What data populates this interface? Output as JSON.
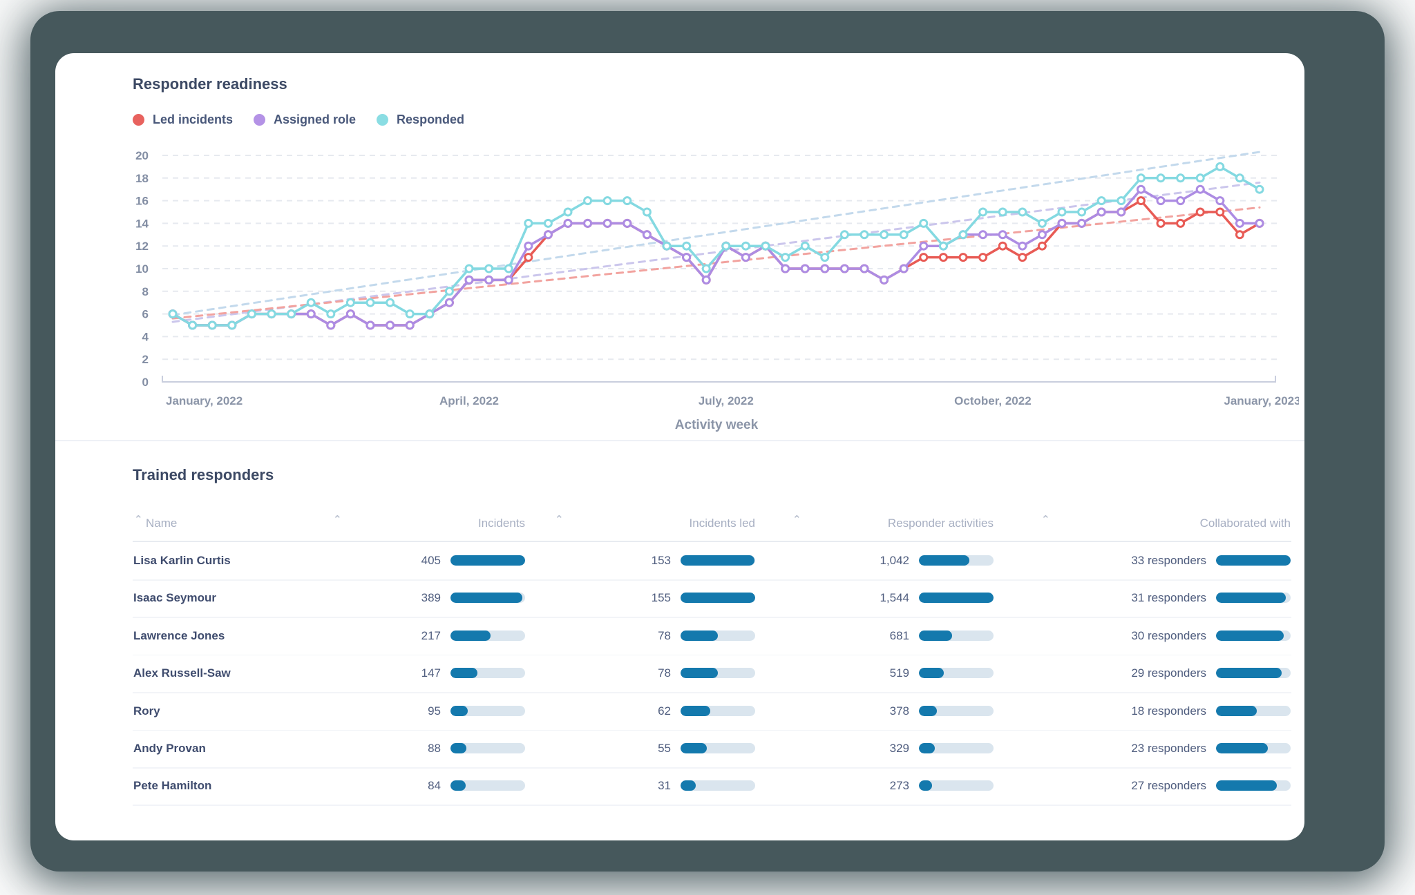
{
  "page": {
    "backdrop_color": "#46585c",
    "card_color": "#ffffff"
  },
  "chart": {
    "title": "Responder readiness",
    "xlabel": "Activity week",
    "legend": [
      {
        "label": "Led incidents",
        "color": "#e8625e"
      },
      {
        "label": "Assigned role",
        "color": "#b492e6"
      },
      {
        "label": "Responded",
        "color": "#8adde3"
      }
    ]
  },
  "chart_data": {
    "type": "line",
    "title": "Responder readiness",
    "xlabel": "Activity week",
    "x_unit": "week (Jan 2022 - Jan 2023, 56 weekly points)",
    "ylim": [
      0,
      20
    ],
    "y_ticks": [
      0,
      2,
      4,
      6,
      8,
      10,
      12,
      14,
      16,
      18,
      20
    ],
    "grid": "dashed horizontal",
    "legend_position": "top-left",
    "x_ticks": [
      {
        "label": "January, 2022",
        "week": 0,
        "anchor": "start"
      },
      {
        "label": "April, 2022",
        "week": 15,
        "anchor": "middle"
      },
      {
        "label": "July, 2022",
        "week": 28,
        "anchor": "middle"
      },
      {
        "label": "October, 2022",
        "week": 41.5,
        "anchor": "middle"
      },
      {
        "label": "January, 2023",
        "week": 55,
        "anchor": "middle"
      }
    ],
    "series": [
      {
        "name": "Led incidents",
        "color": "#e85b55",
        "marker": "open-circle",
        "values": [
          6,
          5,
          5,
          5,
          6,
          6,
          6,
          6,
          5,
          6,
          5,
          5,
          5,
          6,
          7,
          9,
          9,
          9,
          11,
          13,
          14,
          14,
          14,
          14,
          13,
          12,
          11,
          9,
          12,
          11,
          12,
          10,
          10,
          10,
          10,
          10,
          9,
          10,
          11,
          11,
          11,
          11,
          12,
          11,
          12,
          14,
          14,
          15,
          15,
          16,
          14,
          14,
          15,
          15,
          13,
          14
        ]
      },
      {
        "name": "Assigned role",
        "color": "#ad8ce3",
        "marker": "open-circle",
        "values": [
          6,
          5,
          5,
          5,
          6,
          6,
          6,
          6,
          5,
          6,
          5,
          5,
          5,
          6,
          7,
          9,
          9,
          9,
          12,
          13,
          14,
          14,
          14,
          14,
          13,
          12,
          11,
          9,
          12,
          11,
          12,
          10,
          10,
          10,
          10,
          10,
          9,
          10,
          12,
          12,
          13,
          13,
          13,
          12,
          13,
          14,
          14,
          15,
          15,
          17,
          16,
          16,
          17,
          16,
          14,
          14
        ]
      },
      {
        "name": "Responded",
        "color": "#84d9e1",
        "marker": "open-circle",
        "values": [
          6,
          5,
          5,
          5,
          6,
          6,
          6,
          7,
          6,
          7,
          7,
          7,
          6,
          6,
          8,
          10,
          10,
          10,
          14,
          14,
          15,
          16,
          16,
          16,
          15,
          12,
          12,
          10,
          12,
          12,
          12,
          11,
          12,
          11,
          13,
          13,
          13,
          13,
          14,
          12,
          13,
          15,
          15,
          15,
          14,
          15,
          15,
          16,
          16,
          18,
          18,
          18,
          18,
          19,
          18,
          17
        ]
      }
    ],
    "trend_lines": [
      {
        "name": "Responded trend",
        "color": "#c3d9ec",
        "start": 5.9,
        "end": 20.3
      },
      {
        "name": "Assigned role trend",
        "color": "#cbc6ec",
        "start": 5.3,
        "end": 17.6
      },
      {
        "name": "Led incidents trend",
        "color": "#f2a39f",
        "start": 5.6,
        "end": 15.4
      }
    ]
  },
  "table": {
    "title": "Trained responders",
    "bar_fill_color": "#1479ad",
    "bar_track_color": "#dae5ee",
    "columns": [
      {
        "key": "name",
        "label": "Name"
      },
      {
        "key": "incidents",
        "label": "Incidents",
        "max": 405
      },
      {
        "key": "incidents_led",
        "label": "Incidents led",
        "max": 155
      },
      {
        "key": "responder_activities",
        "label": "Responder activities",
        "max": 1544
      },
      {
        "key": "collaborated_with",
        "label": "Collaborated with",
        "max": 33,
        "suffix": " responders"
      }
    ],
    "rows": [
      {
        "name": "Lisa Karlin Curtis",
        "incidents": 405,
        "incidents_led": 153,
        "responder_activities": 1042,
        "collaborated_with": 33
      },
      {
        "name": "Isaac Seymour",
        "incidents": 389,
        "incidents_led": 155,
        "responder_activities": 1544,
        "collaborated_with": 31
      },
      {
        "name": "Lawrence Jones",
        "incidents": 217,
        "incidents_led": 78,
        "responder_activities": 681,
        "collaborated_with": 30
      },
      {
        "name": "Alex Russell-Saw",
        "incidents": 147,
        "incidents_led": 78,
        "responder_activities": 519,
        "collaborated_with": 29
      },
      {
        "name": "Rory",
        "incidents": 95,
        "incidents_led": 62,
        "responder_activities": 378,
        "collaborated_with": 18
      },
      {
        "name": "Andy Provan",
        "incidents": 88,
        "incidents_led": 55,
        "responder_activities": 329,
        "collaborated_with": 23
      },
      {
        "name": "Pete Hamilton",
        "incidents": 84,
        "incidents_led": 31,
        "responder_activities": 273,
        "collaborated_with": 27
      }
    ]
  }
}
